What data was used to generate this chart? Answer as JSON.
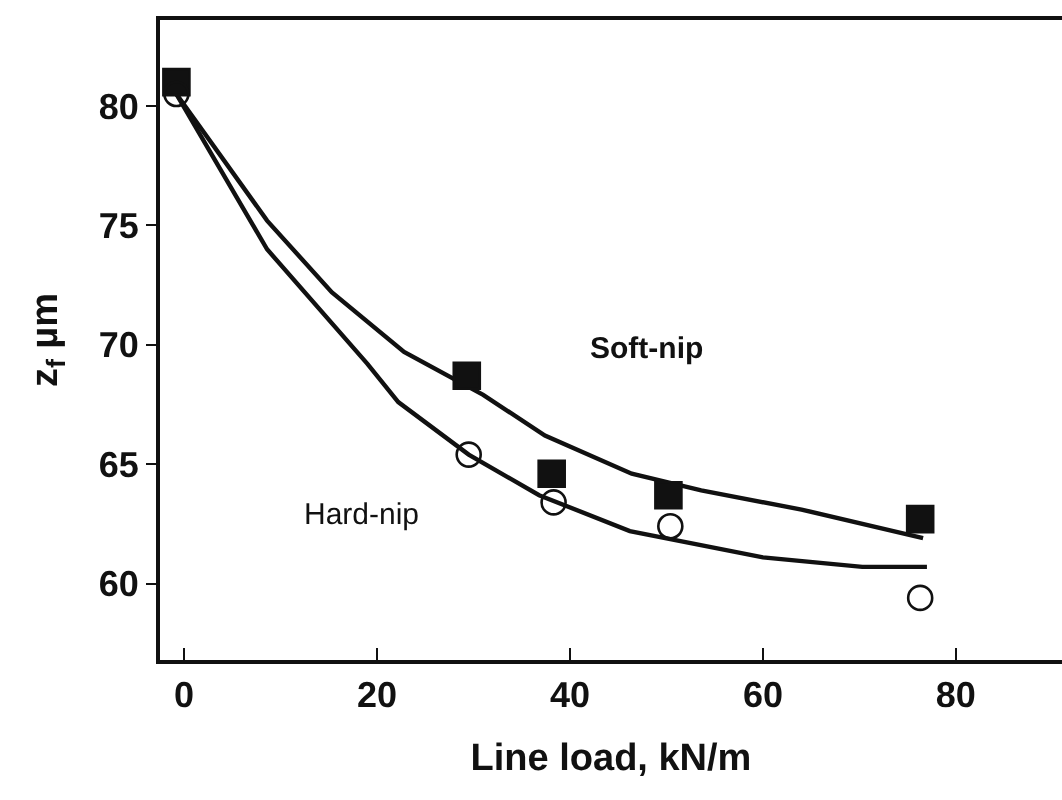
{
  "chart_data": {
    "type": "scatter",
    "xlabel": "Line load, kN/m",
    "ylabel": "z$_{f}$ µm",
    "xlim": [
      -2.5,
      91
    ],
    "ylim": [
      56.8,
      83.6
    ],
    "xticks": [
      0,
      20,
      40,
      60,
      80
    ],
    "yticks": [
      60,
      65,
      70,
      75,
      80
    ],
    "legend": false,
    "series": [
      {
        "marker": "square",
        "color": "#111111",
        "x": [
          -0.8,
          29.3,
          38.1,
          50.2,
          76.3
        ],
        "values": [
          81.0,
          68.7,
          64.6,
          63.7,
          62.7
        ]
      },
      {
        "marker": "circle-open",
        "color": "#111111",
        "x": [
          -0.8,
          29.5,
          38.3,
          50.4,
          76.3
        ],
        "values": [
          80.5,
          65.4,
          63.4,
          62.4,
          59.4
        ]
      },
      {
        "name": "Soft-nip",
        "type": "line",
        "marker": "none",
        "color": "#111111",
        "x": [
          -0.8,
          8.6,
          15.3,
          22.8,
          31.0,
          37.4,
          46.4,
          53.6,
          64.0,
          76.6
        ],
        "values": [
          80.5,
          75.2,
          72.2,
          69.7,
          67.9,
          66.2,
          64.6,
          63.9,
          63.1,
          61.9
        ]
      },
      {
        "name": "Hard-nip",
        "type": "line",
        "marker": "none",
        "color": "#111111",
        "x": [
          -0.8,
          8.6,
          19.0,
          22.2,
          29.5,
          36.8,
          46.2,
          60.0,
          70.3,
          77.0
        ],
        "values": [
          80.5,
          74.0,
          69.2,
          67.6,
          65.4,
          63.7,
          62.2,
          61.1,
          60.7,
          60.7
        ]
      }
    ]
  }
}
